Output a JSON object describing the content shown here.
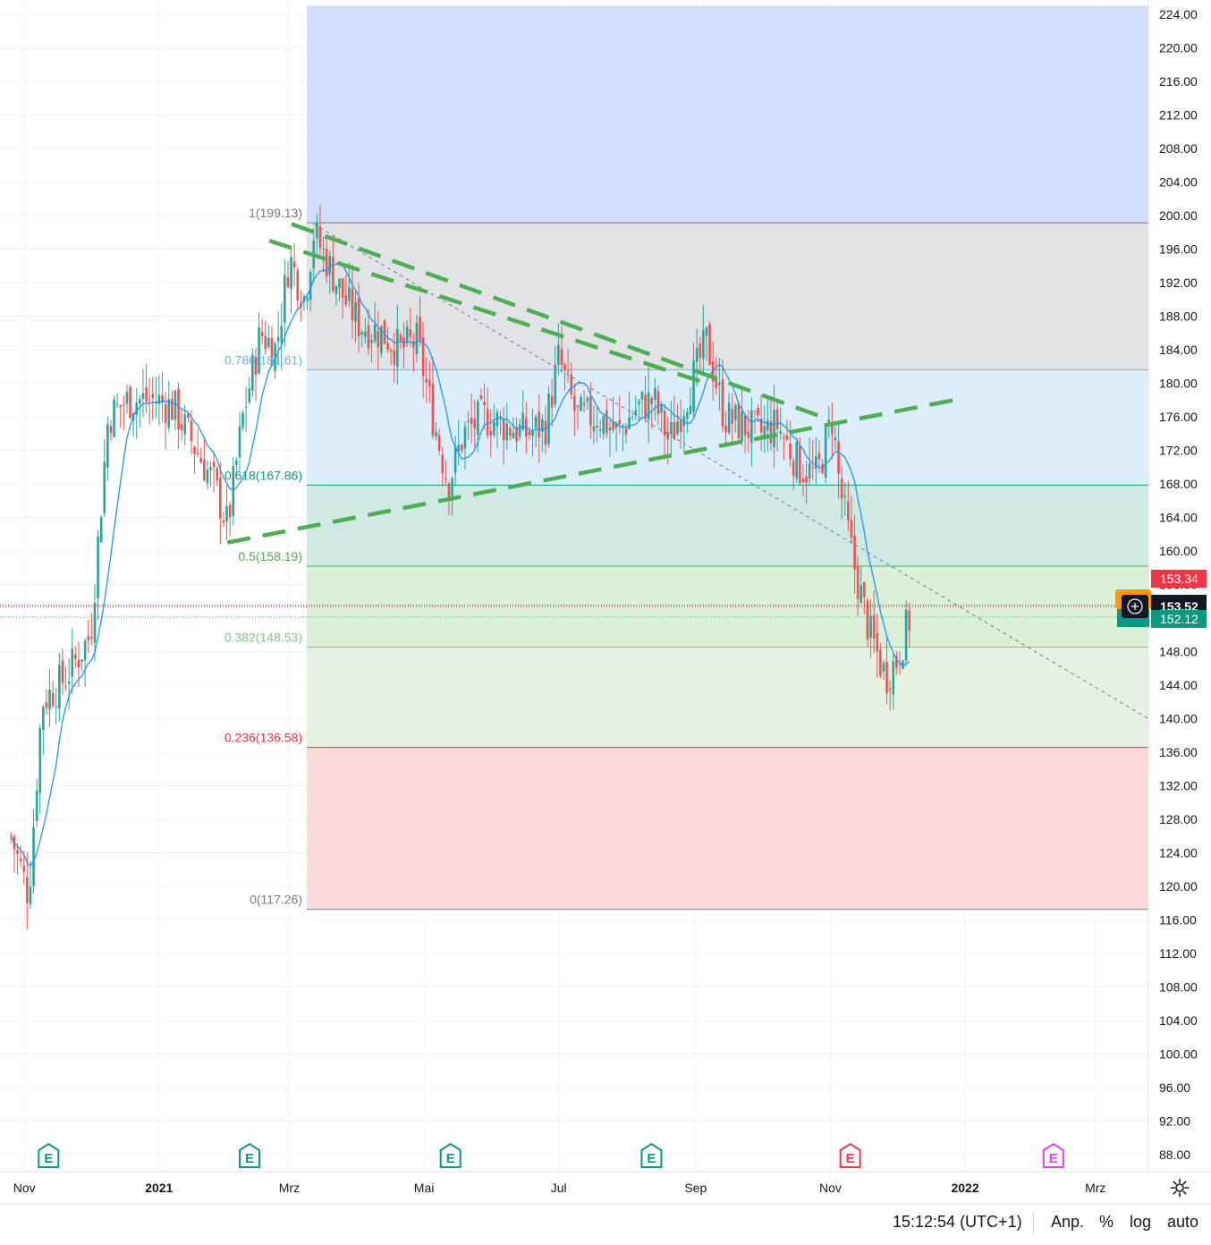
{
  "chart_data": {
    "type": "candlestick",
    "x_axis": {
      "ticks": [
        "Nov",
        "2021",
        "Mrz",
        "Mai",
        "Jul",
        "Sep",
        "Nov",
        "2022",
        "Mrz"
      ],
      "bold_ticks": [
        "2021",
        "2022"
      ]
    },
    "y_axis": {
      "ylim": [
        86,
        225
      ],
      "ticks": [
        224,
        220,
        216,
        212,
        208,
        204,
        200,
        196,
        192,
        188,
        184,
        180,
        176,
        172,
        168,
        164,
        160,
        156,
        152,
        148,
        144,
        140,
        136,
        132,
        128,
        124,
        120,
        116,
        112,
        108,
        104,
        100,
        96,
        92,
        88
      ],
      "tick_labels": [
        "224.00",
        "220.00",
        "216.00",
        "212.00",
        "208.00",
        "204.00",
        "200.00",
        "196.00",
        "192.00",
        "188.00",
        "184.00",
        "180.00",
        "176.00",
        "172.00",
        "168.00",
        "164.00",
        "160.00",
        "156.00",
        "152.00",
        "148.00",
        "144.00",
        "140.00",
        "136.00",
        "132.00",
        "128.00",
        "124.00",
        "120.00",
        "116.00",
        "112.00",
        "108.00",
        "104.00",
        "100.00",
        "96.00",
        "92.00",
        "88.00"
      ],
      "grid": true
    },
    "fibonacci": {
      "levels": [
        {
          "ratio": "1",
          "value": 199.13,
          "label": "1(199.13)",
          "color": "#787b86"
        },
        {
          "ratio": "0.786",
          "value": 181.61,
          "label": "0.786(181.61)",
          "color": "#64b5f6"
        },
        {
          "ratio": "0.618",
          "value": 167.86,
          "label": "0.618(167.86)",
          "color": "#089981"
        },
        {
          "ratio": "0.5",
          "value": 158.19,
          "label": "0.5(158.19)",
          "color": "#4caf50"
        },
        {
          "ratio": "0.382",
          "value": 148.53,
          "label": "0.382(148.53)",
          "color": "#81c784"
        },
        {
          "ratio": "0.236",
          "value": 136.58,
          "label": "0.236(136.58)",
          "color": "#f23645"
        },
        {
          "ratio": "0",
          "value": 117.26,
          "label": "0(117.26)",
          "color": "#787b86"
        }
      ],
      "zones": [
        {
          "from": 199.13,
          "to": 225,
          "color": "#d0dcfc"
        },
        {
          "from": 181.61,
          "to": 199.13,
          "color": "#e1e3e6"
        },
        {
          "from": 167.86,
          "to": 181.61,
          "color": "#dcedfb"
        },
        {
          "from": 158.19,
          "to": 167.86,
          "color": "#cfeae4"
        },
        {
          "from": 148.53,
          "to": 158.19,
          "color": "#dcefd9"
        },
        {
          "from": 136.58,
          "to": 148.53,
          "color": "#e4f3e1"
        },
        {
          "from": 117.26,
          "to": 136.58,
          "color": "#fcdadb"
        }
      ]
    },
    "price_labels": [
      {
        "value": 153.34,
        "text": "153.34",
        "color": "#f23645"
      },
      {
        "value": 153.52,
        "text": "153.52",
        "color": "#131722"
      },
      {
        "value": 152.12,
        "text": "152.12",
        "color": "#089981"
      }
    ],
    "event_markers": [
      {
        "label": "E",
        "kind": "earnings-past"
      },
      {
        "label": "E",
        "kind": "earnings-past"
      },
      {
        "label": "E",
        "kind": "earnings-past"
      },
      {
        "label": "E",
        "kind": "earnings-past"
      },
      {
        "label": "E",
        "kind": "earnings-negative"
      },
      {
        "label": "E",
        "kind": "earnings-future"
      }
    ],
    "series": [
      {
        "kind": "candles",
        "note": "daily OHLC, Oct 2020 - Dec 2021",
        "trend_points": [
          [
            "2020-10-26",
            126
          ],
          [
            "2020-11-03",
            119
          ],
          [
            "2020-11-09",
            142
          ],
          [
            "2020-11-20",
            145
          ],
          [
            "2020-12-01",
            150
          ],
          [
            "2020-12-09",
            176
          ],
          [
            "2020-12-18",
            178
          ],
          [
            "2020-12-31",
            178
          ],
          [
            "2021-01-08",
            177
          ],
          [
            "2021-01-18",
            172
          ],
          [
            "2021-01-26",
            168
          ],
          [
            "2021-02-01",
            163
          ],
          [
            "2021-02-08",
            176
          ],
          [
            "2021-02-16",
            186
          ],
          [
            "2021-02-23",
            184
          ],
          [
            "2021-03-01",
            195
          ],
          [
            "2021-03-08",
            190
          ],
          [
            "2021-03-12",
            198
          ],
          [
            "2021-03-19",
            194
          ],
          [
            "2021-03-26",
            190
          ],
          [
            "2021-04-02",
            187
          ],
          [
            "2021-04-12",
            186
          ],
          [
            "2021-04-20",
            184
          ],
          [
            "2021-04-28",
            185
          ],
          [
            "2021-05-05",
            176
          ],
          [
            "2021-05-12",
            168
          ],
          [
            "2021-05-19",
            174
          ],
          [
            "2021-05-28",
            176
          ],
          [
            "2021-06-07",
            175
          ],
          [
            "2021-06-16",
            174
          ],
          [
            "2021-06-25",
            175
          ],
          [
            "2021-07-01",
            183
          ],
          [
            "2021-07-09",
            176
          ],
          [
            "2021-07-19",
            176
          ],
          [
            "2021-07-28",
            174
          ],
          [
            "2021-08-05",
            177
          ],
          [
            "2021-08-13",
            178
          ],
          [
            "2021-08-20",
            173
          ],
          [
            "2021-08-30",
            180
          ],
          [
            "2021-09-06",
            185
          ],
          [
            "2021-09-14",
            176
          ],
          [
            "2021-09-22",
            175
          ],
          [
            "2021-09-30",
            174
          ],
          [
            "2021-10-08",
            175
          ],
          [
            "2021-10-18",
            170
          ],
          [
            "2021-10-26",
            169
          ],
          [
            "2021-11-02",
            176
          ],
          [
            "2021-11-05",
            168
          ],
          [
            "2021-11-12",
            158
          ],
          [
            "2021-11-19",
            150
          ],
          [
            "2021-11-26",
            145
          ],
          [
            "2021-12-01",
            147
          ],
          [
            "2021-12-07",
            152
          ]
        ]
      },
      {
        "kind": "moving-average",
        "color": "#2196f3"
      }
    ],
    "trendlines": [
      {
        "style": "dashed",
        "color": "#4caf50",
        "from": [
          "2021-03-02",
          199
        ],
        "to": [
          "2021-10-28",
          176
        ]
      },
      {
        "style": "dashed",
        "color": "#4caf50",
        "from": [
          "2021-02-20",
          197
        ],
        "to": [
          "2021-09-06",
          180
        ]
      },
      {
        "style": "dashed",
        "color": "#4caf50",
        "from": [
          "2021-02-01",
          161
        ],
        "to": [
          "2021-12-27",
          178
        ]
      },
      {
        "style": "dotted",
        "color": "#787b86",
        "from": [
          "2021-03-12",
          199
        ],
        "to": [
          "2022-03-25",
          140
        ]
      }
    ]
  },
  "toolbar": {
    "clock": "15:12:54 (UTC+1)",
    "adjust": "Anp.",
    "percent": "%",
    "log": "log",
    "auto": "auto"
  },
  "colors": {
    "up": "#26a69a",
    "down": "#ef5350",
    "ma": "#2196f3",
    "trend": "#4caf50"
  }
}
